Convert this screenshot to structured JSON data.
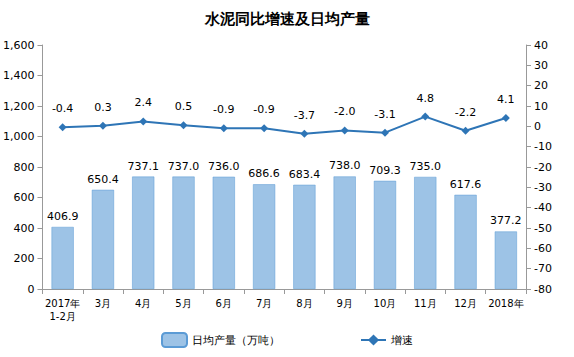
{
  "chart_data": {
    "type": "bar",
    "title": "水泥同比增速及日均产量",
    "categories": [
      "2017年\n1-2月",
      "3月",
      "4月",
      "5月",
      "6月",
      "7月",
      "8月",
      "9月",
      "10月",
      "11月",
      "12月",
      "2018年"
    ],
    "series": [
      {
        "name": "日均产量（万吨）",
        "type": "bar",
        "color": "#9dc3e6",
        "values": [
          406.9,
          650.4,
          737.1,
          737.0,
          736.0,
          686.6,
          683.4,
          738.0,
          709.3,
          735.0,
          617.6,
          377.2
        ],
        "value_labels": [
          "406.9",
          "650.4",
          "737.1",
          "737.0",
          "736.0",
          "686.6",
          "683.4",
          "738.0",
          "709.3",
          "735.0",
          "617.6",
          "377.2"
        ]
      },
      {
        "name": "增速",
        "type": "line",
        "axis": "y2",
        "color": "#2e75b6",
        "marker": "diamond",
        "values": [
          -0.4,
          0.3,
          2.4,
          0.5,
          -0.9,
          -0.9,
          -3.7,
          -2.0,
          -3.1,
          4.8,
          -2.2,
          4.1
        ],
        "value_labels": [
          "-0.4",
          "0.3",
          "2.4",
          "0.5",
          "-0.9",
          "-0.9",
          "-3.7",
          "-2.0",
          "-3.1",
          "4.8",
          "-2.2",
          "4.1"
        ]
      }
    ],
    "ylim": [
      0,
      1600
    ],
    "yticks": [
      0,
      200,
      400,
      600,
      800,
      1000,
      1200,
      1400,
      1600
    ],
    "y2lim": [
      -80,
      40
    ],
    "y2ticks": [
      -80,
      -70,
      -60,
      -50,
      -40,
      -30,
      -20,
      -10,
      0,
      10,
      20,
      30,
      40
    ],
    "data_labels": true,
    "grid": false,
    "legend": "bottom"
  }
}
